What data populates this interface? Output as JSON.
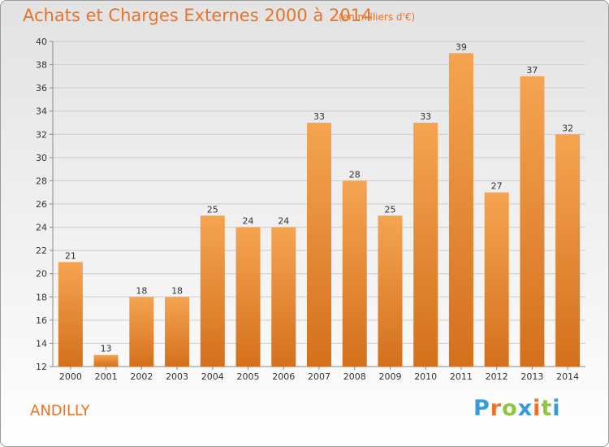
{
  "header": {
    "title": "Achats et Charges Externes 2000 à 2014",
    "subtitle": "(en milliers d'€)"
  },
  "footer": {
    "city": "ANDILLY",
    "brand": "Proxiti",
    "brand_colors": [
      "#3a9ad9",
      "#e8742a",
      "#8dc63f",
      "#3a9ad9",
      "#e8742a",
      "#8dc63f",
      "#3a9ad9"
    ]
  },
  "colors": {
    "accent": "#e8742a",
    "bar_light": "#f5a452",
    "bar_dark": "#d4701c",
    "grid": "#cccccc",
    "axis": "#888888"
  },
  "chart_data": {
    "type": "bar",
    "title": "Achats et Charges Externes 2000 à 2014",
    "subtitle": "(en milliers d'€)",
    "xlabel": "",
    "ylabel": "",
    "categories": [
      "2000",
      "2001",
      "2002",
      "2003",
      "2004",
      "2005",
      "2006",
      "2007",
      "2008",
      "2009",
      "2010",
      "2011",
      "2012",
      "2013",
      "2014"
    ],
    "values": [
      21,
      13,
      18,
      18,
      25,
      24,
      24,
      33,
      28,
      25,
      33,
      39,
      27,
      37,
      32
    ],
    "ylim": [
      12,
      40
    ],
    "yticks": [
      12,
      14,
      16,
      18,
      20,
      22,
      24,
      26,
      28,
      30,
      32,
      34,
      36,
      38,
      40
    ],
    "grid": true,
    "data_labels": true
  }
}
